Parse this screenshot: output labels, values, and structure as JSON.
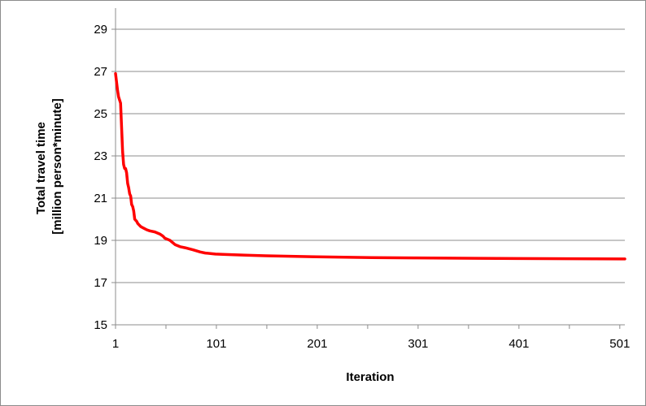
{
  "chart_data": {
    "type": "line",
    "title": "",
    "xlabel": "Iteration",
    "ylabel_lines": [
      "Total travel time",
      "[million person*minute]"
    ],
    "xlim": [
      1,
      506
    ],
    "ylim": [
      15,
      30
    ],
    "grid": "horizontal",
    "legend": "none",
    "x_ticks": [
      1,
      101,
      201,
      301,
      401,
      501
    ],
    "y_ticks": [
      15,
      17,
      19,
      21,
      23,
      25,
      27,
      29
    ],
    "series": [
      {
        "color": "#ff0000",
        "x": [
          1,
          3,
          4,
          6,
          8,
          9,
          10,
          11,
          12,
          13,
          14,
          15,
          16,
          17,
          18,
          19,
          20,
          21,
          22,
          23,
          24,
          25,
          26,
          28,
          30,
          32,
          35,
          40,
          45,
          48,
          50,
          55,
          60,
          65,
          70,
          78,
          85,
          90,
          100,
          110,
          130,
          150,
          200,
          255,
          300,
          360,
          400,
          450,
          506
        ],
        "y": [
          26.9,
          26.1,
          25.8,
          25.5,
          23.2,
          22.6,
          22.4,
          22.4,
          22.2,
          21.7,
          21.5,
          21.2,
          21.1,
          20.7,
          20.6,
          20.4,
          20.0,
          19.95,
          19.9,
          19.8,
          19.75,
          19.7,
          19.65,
          19.6,
          19.55,
          19.5,
          19.45,
          19.4,
          19.3,
          19.2,
          19.1,
          19.0,
          18.8,
          18.7,
          18.65,
          18.55,
          18.45,
          18.4,
          18.35,
          18.33,
          18.3,
          18.27,
          18.22,
          18.18,
          18.17,
          18.15,
          18.14,
          18.13,
          18.12
        ]
      }
    ]
  }
}
